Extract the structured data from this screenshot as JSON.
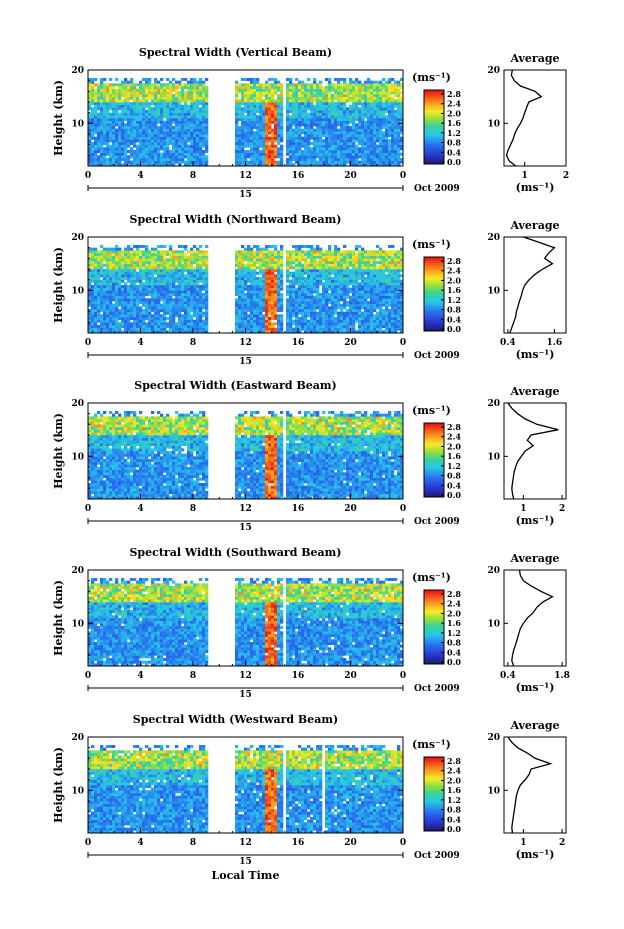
{
  "figure": {
    "x_axis_label": "Local Time",
    "y_axis_label": "Height (km)",
    "date_label": "Oct 2009",
    "day_label": "15",
    "colorbar_unit": "(ms⁻¹)",
    "colorbar_ticks": [
      "0.0",
      "0.4",
      "0.8",
      "1.2",
      "1.6",
      "2.0",
      "2.4",
      "2.8"
    ],
    "average_title": "Average",
    "average_xlabel": "(ms⁻¹)",
    "colors": {
      "low": "#2a2a7a",
      "mid": "#33cc99",
      "high": "#ee1111",
      "gap": "#ffffff"
    }
  },
  "chart_data": [
    {
      "type": "heatmap",
      "title": "Spectral Width (Vertical Beam)",
      "xlabel": "",
      "ylabel": "Height (km)",
      "x_ticks": [
        "0",
        "4",
        "8",
        "12",
        "16",
        "20",
        "0"
      ],
      "xlim": [
        0,
        24
      ],
      "ylim": [
        2,
        20
      ],
      "y_ticks": [
        "10",
        "20"
      ],
      "colorbar_range": [
        0.0,
        2.8
      ],
      "data_gaps_hours": [
        [
          9.1,
          11.2
        ],
        [
          14.9,
          15.1
        ]
      ],
      "average_profile": {
        "xlim": [
          0.5,
          2.0
        ],
        "x_ticks": [
          "1",
          "2"
        ],
        "x_tick_values": [
          1,
          2
        ],
        "height_km": [
          2,
          3,
          4,
          5,
          6,
          7,
          8,
          9,
          10,
          11,
          12,
          13,
          14,
          15,
          16,
          17,
          18,
          19,
          20
        ],
        "value": [
          0.78,
          0.62,
          0.56,
          0.6,
          0.66,
          0.72,
          0.76,
          0.82,
          0.9,
          0.96,
          1.0,
          1.05,
          1.1,
          1.4,
          1.25,
          0.9,
          0.75,
          0.68,
          0.7
        ]
      }
    },
    {
      "type": "heatmap",
      "title": "Spectral Width (Northward Beam)",
      "xlabel": "",
      "ylabel": "Height (km)",
      "x_ticks": [
        "0",
        "4",
        "8",
        "12",
        "16",
        "20",
        "0"
      ],
      "xlim": [
        0,
        24
      ],
      "ylim": [
        2,
        20
      ],
      "y_ticks": [
        "10",
        "20"
      ],
      "colorbar_range": [
        0.0,
        2.8
      ],
      "data_gaps_hours": [
        [
          9.1,
          11.2
        ],
        [
          14.9,
          15.1
        ]
      ],
      "average_profile": {
        "xlim": [
          0.3,
          1.9
        ],
        "x_ticks": [
          "0.4",
          "1.6"
        ],
        "x_tick_values": [
          0.4,
          1.6
        ],
        "height_km": [
          2,
          3,
          4,
          5,
          6,
          7,
          8,
          9,
          10,
          11,
          12,
          13,
          14,
          15,
          16,
          17,
          18,
          19,
          20
        ],
        "value": [
          0.45,
          0.5,
          0.55,
          0.6,
          0.62,
          0.66,
          0.7,
          0.75,
          0.78,
          0.84,
          0.95,
          1.1,
          1.3,
          1.55,
          1.35,
          1.45,
          1.6,
          1.2,
          0.8
        ]
      }
    },
    {
      "type": "heatmap",
      "title": "Spectral Width (Eastward Beam)",
      "xlabel": "",
      "ylabel": "Height (km)",
      "x_ticks": [
        "0",
        "4",
        "8",
        "12",
        "16",
        "20",
        "0"
      ],
      "xlim": [
        0,
        24
      ],
      "ylim": [
        2,
        20
      ],
      "y_ticks": [
        "10",
        "20"
      ],
      "colorbar_range": [
        0.0,
        2.8
      ],
      "data_gaps_hours": [
        [
          9.1,
          11.2
        ],
        [
          14.9,
          15.1
        ]
      ],
      "average_profile": {
        "xlim": [
          0.5,
          2.1
        ],
        "x_ticks": [
          "1",
          "2"
        ],
        "x_tick_values": [
          1,
          2
        ],
        "height_km": [
          2,
          3,
          4,
          5,
          6,
          7,
          8,
          9,
          10,
          11,
          12,
          13,
          14,
          15,
          16,
          17,
          18,
          19,
          20
        ],
        "value": [
          0.75,
          0.72,
          0.7,
          0.72,
          0.74,
          0.76,
          0.8,
          0.85,
          0.95,
          1.05,
          1.25,
          1.1,
          1.2,
          1.9,
          1.35,
          1.05,
          0.85,
          0.7,
          0.6
        ]
      }
    },
    {
      "type": "heatmap",
      "title": "Spectral Width (Southward Beam)",
      "xlabel": "",
      "ylabel": "Height (km)",
      "x_ticks": [
        "0",
        "4",
        "8",
        "12",
        "16",
        "20",
        "0"
      ],
      "xlim": [
        0,
        24
      ],
      "ylim": [
        2,
        20
      ],
      "y_ticks": [
        "10",
        "20"
      ],
      "colorbar_range": [
        0.0,
        2.8
      ],
      "data_gaps_hours": [
        [
          9.1,
          11.2
        ],
        [
          14.9,
          15.1
        ]
      ],
      "average_profile": {
        "xlim": [
          0.3,
          1.9
        ],
        "x_ticks": [
          "0.4",
          "1.8"
        ],
        "x_tick_values": [
          0.4,
          1.8
        ],
        "height_km": [
          2,
          3,
          4,
          5,
          6,
          7,
          8,
          9,
          10,
          11,
          12,
          13,
          14,
          15,
          16,
          17,
          18,
          19,
          20
        ],
        "value": [
          0.55,
          0.5,
          0.52,
          0.55,
          0.6,
          0.64,
          0.68,
          0.72,
          0.8,
          0.9,
          1.05,
          1.15,
          1.3,
          1.55,
          1.25,
          1.0,
          0.8,
          0.72,
          0.7
        ]
      }
    },
    {
      "type": "heatmap",
      "title": "Spectral Width (Westward Beam)",
      "xlabel": "",
      "ylabel": "Height (km)",
      "x_ticks": [
        "0",
        "4",
        "8",
        "12",
        "16",
        "20",
        "0"
      ],
      "xlim": [
        0,
        24
      ],
      "ylim": [
        2,
        20
      ],
      "y_ticks": [
        "10",
        "20"
      ],
      "colorbar_range": [
        0.0,
        2.8
      ],
      "data_gaps_hours": [
        [
          9.1,
          11.2
        ],
        [
          14.9,
          15.1
        ],
        [
          17.9,
          18.1
        ]
      ],
      "average_profile": {
        "xlim": [
          0.5,
          2.1
        ],
        "x_ticks": [
          "1",
          "2"
        ],
        "x_tick_values": [
          1,
          2
        ],
        "height_km": [
          2,
          3,
          4,
          5,
          6,
          7,
          8,
          9,
          10,
          11,
          12,
          13,
          14,
          15,
          16,
          17,
          18,
          19,
          20
        ],
        "value": [
          0.72,
          0.7,
          0.72,
          0.74,
          0.76,
          0.78,
          0.8,
          0.82,
          0.86,
          0.92,
          1.05,
          1.15,
          1.2,
          1.7,
          1.3,
          1.1,
          0.85,
          0.7,
          0.6
        ]
      }
    }
  ]
}
